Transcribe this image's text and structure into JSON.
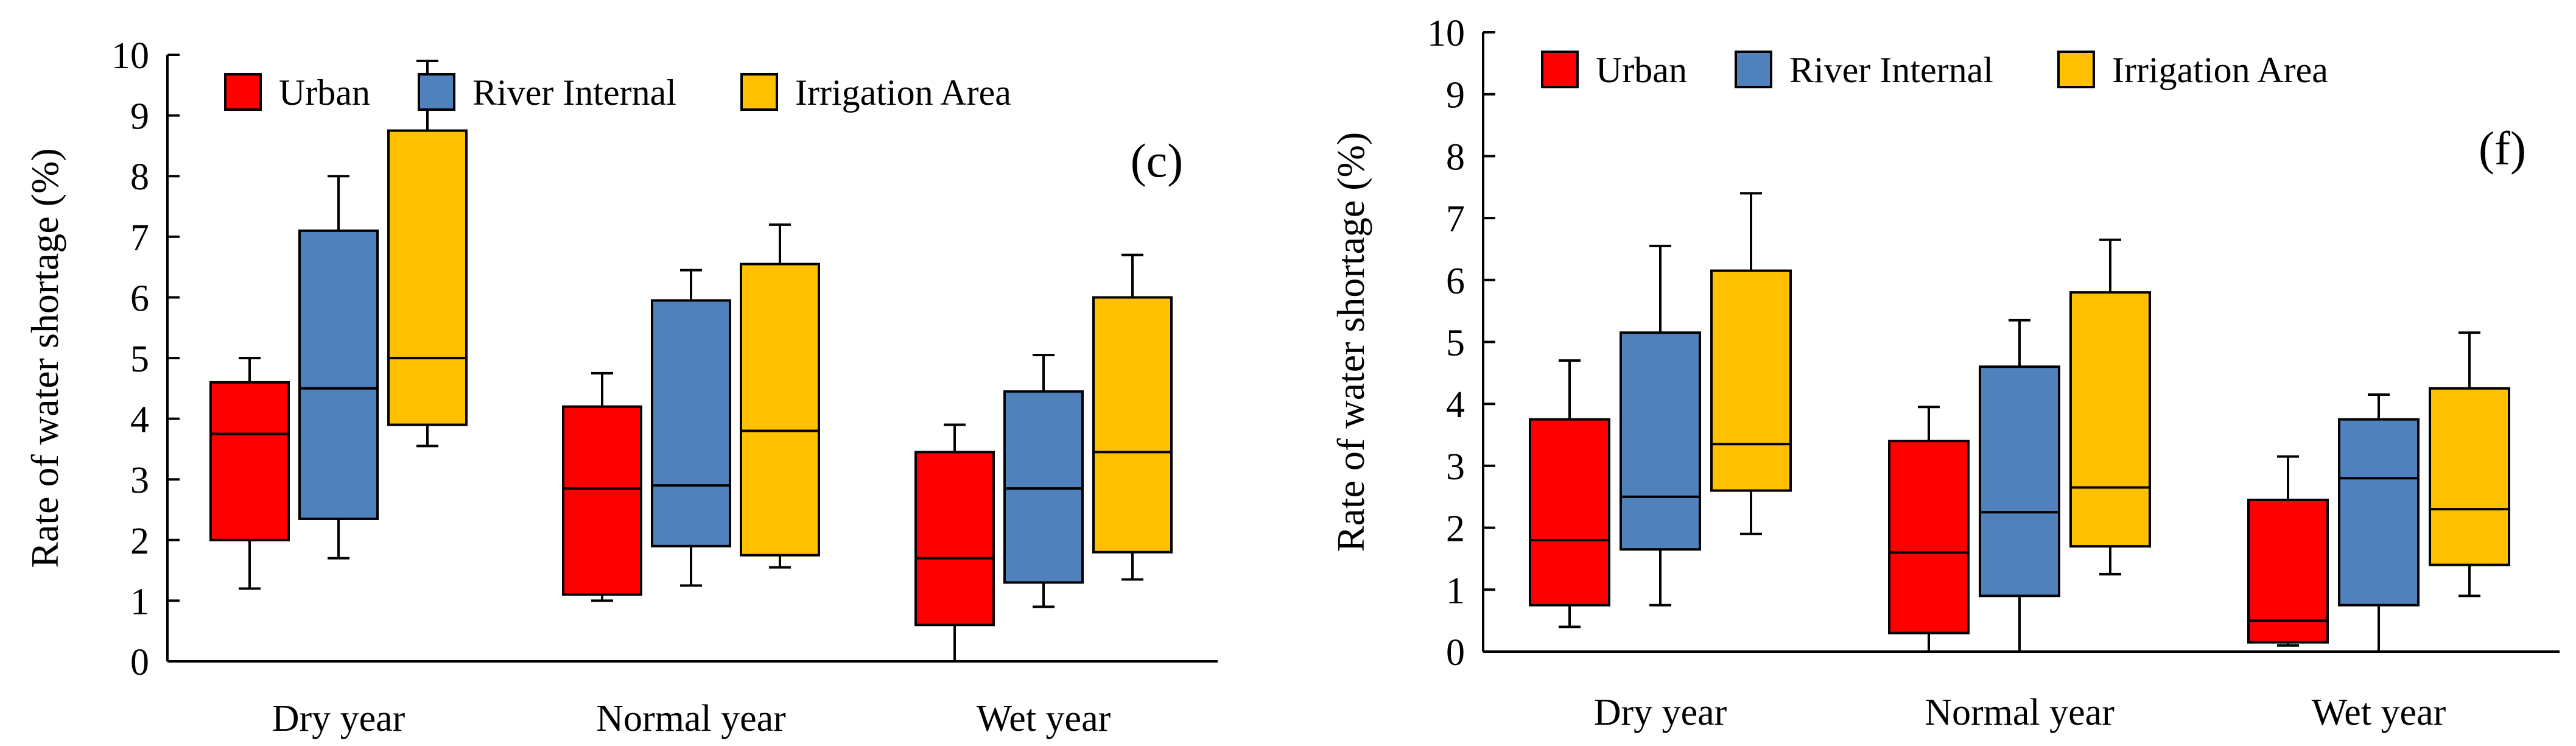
{
  "chart_data": [
    {
      "type": "box",
      "panel_label": "(c)",
      "ylabel": "Rate of water  shortage (%)",
      "ylim": [
        0,
        10
      ],
      "yticks": [
        "0",
        "1",
        "2",
        "3",
        "4",
        "5",
        "6",
        "7",
        "8",
        "9",
        "10"
      ],
      "categories": [
        "Dry year",
        "Normal year",
        "Wet year"
      ],
      "legend": {
        "position": "top-left"
      },
      "series": [
        {
          "name": "Urban",
          "color": "#FF0000",
          "boxes": [
            {
              "min": 1.2,
              "q1": 2.0,
              "median": 3.75,
              "q3": 4.6,
              "max": 5.0
            },
            {
              "min": 1.0,
              "q1": 1.1,
              "median": 2.85,
              "q3": 4.2,
              "max": 4.75
            },
            {
              "min": 0.0,
              "q1": 0.6,
              "median": 1.7,
              "q3": 3.45,
              "max": 3.9
            }
          ]
        },
        {
          "name": "River Internal",
          "color": "#4F81BD",
          "boxes": [
            {
              "min": 1.7,
              "q1": 2.35,
              "median": 4.5,
              "q3": 7.1,
              "max": 8.0
            },
            {
              "min": 1.25,
              "q1": 1.9,
              "median": 2.9,
              "q3": 5.95,
              "max": 6.45
            },
            {
              "min": 0.9,
              "q1": 1.3,
              "median": 2.85,
              "q3": 4.45,
              "max": 5.05
            }
          ]
        },
        {
          "name": "Irrigation Area",
          "color": "#FFC000",
          "boxes": [
            {
              "min": 3.55,
              "q1": 3.9,
              "median": 5.0,
              "q3": 8.75,
              "max": 9.9
            },
            {
              "min": 1.55,
              "q1": 1.75,
              "median": 3.8,
              "q3": 6.55,
              "max": 7.2
            },
            {
              "min": 1.35,
              "q1": 1.8,
              "median": 3.45,
              "q3": 6.0,
              "max": 6.7
            }
          ]
        }
      ]
    },
    {
      "type": "box",
      "panel_label": "(f)",
      "ylabel": "Rate of water  shortage (%)",
      "ylim": [
        0,
        10
      ],
      "yticks": [
        "0",
        "1",
        "2",
        "3",
        "4",
        "5",
        "6",
        "7",
        "8",
        "9",
        "10"
      ],
      "categories": [
        "Dry year",
        "Normal year",
        "Wet year"
      ],
      "legend": {
        "position": "top-left"
      },
      "series": [
        {
          "name": "Urban",
          "color": "#FF0000",
          "boxes": [
            {
              "min": 0.4,
              "q1": 0.75,
              "median": 1.8,
              "q3": 3.75,
              "max": 4.7
            },
            {
              "min": 0.0,
              "q1": 0.3,
              "median": 1.6,
              "q3": 3.4,
              "max": 3.95
            },
            {
              "min": 0.1,
              "q1": 0.15,
              "median": 0.5,
              "q3": 2.45,
              "max": 3.15
            }
          ]
        },
        {
          "name": "River Internal",
          "color": "#4F81BD",
          "boxes": [
            {
              "min": 0.75,
              "q1": 1.65,
              "median": 2.5,
              "q3": 5.15,
              "max": 6.55
            },
            {
              "min": 0.0,
              "q1": 0.9,
              "median": 2.25,
              "q3": 4.6,
              "max": 5.35
            },
            {
              "min": 0.0,
              "q1": 0.75,
              "median": 2.8,
              "q3": 3.75,
              "max": 4.15
            }
          ]
        },
        {
          "name": "Irrigation Area",
          "color": "#FFC000",
          "boxes": [
            {
              "min": 1.9,
              "q1": 2.6,
              "median": 3.35,
              "q3": 6.15,
              "max": 7.4
            },
            {
              "min": 1.25,
              "q1": 1.7,
              "median": 2.65,
              "q3": 5.8,
              "max": 6.65
            },
            {
              "min": 0.9,
              "q1": 1.4,
              "median": 2.3,
              "q3": 4.25,
              "max": 5.15
            }
          ]
        }
      ]
    }
  ]
}
